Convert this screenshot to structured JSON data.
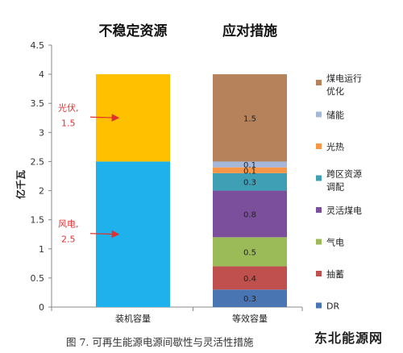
{
  "chart_data": {
    "type": "bar",
    "stacked": true,
    "panel_titles": [
      "不稳定资源",
      "应对措施"
    ],
    "ylabel": "亿千瓦",
    "ylim": [
      0,
      4.5
    ],
    "yticks": [
      "0",
      "0.5",
      "1",
      "1.5",
      "2",
      "2.5",
      "3",
      "3.5",
      "4",
      "4.5"
    ],
    "grid": false,
    "legend_position": "right",
    "bars": [
      {
        "category": "装机容量",
        "segments": [
          {
            "name": "风电",
            "value": 2.5,
            "color": "#1eb1ec"
          },
          {
            "name": "光伏",
            "value": 1.5,
            "color": "#ffc000"
          }
        ],
        "annotations": [
          {
            "text": [
              "风电,",
              "2.5"
            ],
            "value": 2.5,
            "y_at": 1.25
          },
          {
            "text": [
              "光伏,",
              "1.5"
            ],
            "value": 1.5,
            "y_at": 3.25
          }
        ]
      },
      {
        "category": "等效容量",
        "segments": [
          {
            "name": "DR",
            "value": 0.3,
            "label": "0.3",
            "color": "#4a75b3"
          },
          {
            "name": "抽蓄",
            "value": 0.4,
            "label": "0.4",
            "color": "#c0504d"
          },
          {
            "name": "气电",
            "value": 0.5,
            "label": "0.5",
            "color": "#9bbb59"
          },
          {
            "name": "灵活煤电",
            "value": 0.8,
            "label": "0.8",
            "color": "#7b4f9c"
          },
          {
            "name": "跨区资源调配",
            "value": 0.3,
            "label": "0.3",
            "color": "#3e9fb5"
          },
          {
            "name": "光热",
            "value": 0.1,
            "label": "0.1",
            "color": "#f79646"
          },
          {
            "name": "储能",
            "value": 0.1,
            "label": "0.1",
            "color": "#a5b8d9"
          },
          {
            "name": "煤电运行优化",
            "value": 1.5,
            "label": "1.5",
            "color": "#b5825b"
          }
        ]
      }
    ],
    "legend": [
      {
        "name": [
          "煤电运行",
          "优化"
        ],
        "color": "#b5825b"
      },
      {
        "name": [
          "储能"
        ],
        "color": "#a5b8d9"
      },
      {
        "name": [
          "光热"
        ],
        "color": "#f79646"
      },
      {
        "name": [
          "跨区资源",
          "调配"
        ],
        "color": "#3e9fb5"
      },
      {
        "name": [
          "灵活煤电"
        ],
        "color": "#7b4f9c"
      },
      {
        "name": [
          "气电"
        ],
        "color": "#9bbb59"
      },
      {
        "name": [
          "抽蓄"
        ],
        "color": "#c0504d"
      },
      {
        "name": [
          "DR"
        ],
        "color": "#4a75b3"
      }
    ]
  },
  "caption": "图 7. 可再生能源电源间歇性与灵活性措施",
  "watermark": "东北能源网"
}
